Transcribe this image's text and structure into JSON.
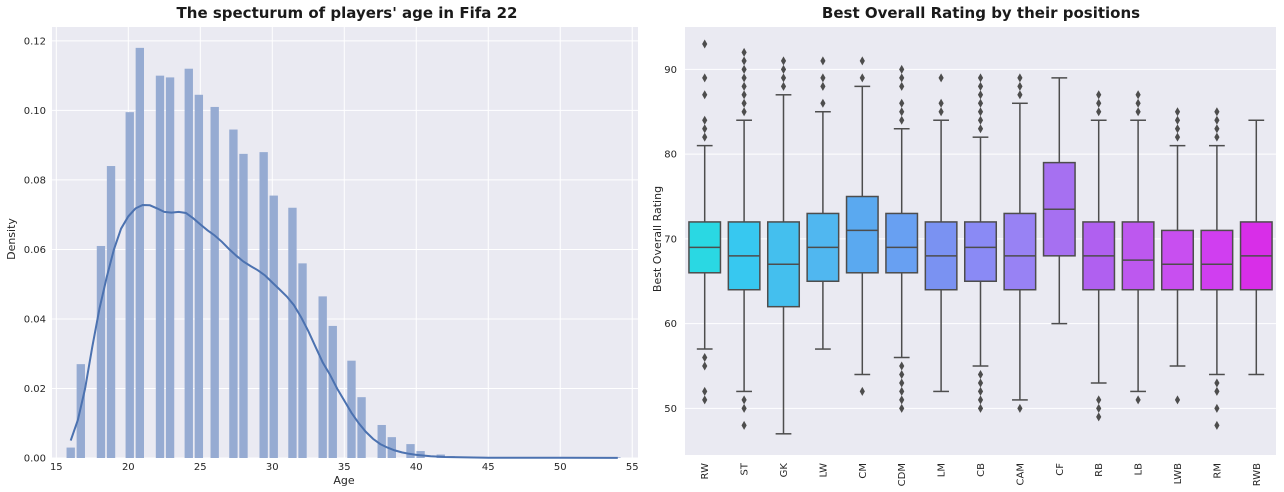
{
  "chart_data": [
    {
      "type": "histogram",
      "title": "The specturum of players' age in Fifa 22",
      "xlabel": "Age",
      "ylabel": "Density",
      "xlim": [
        14.7,
        55.4
      ],
      "ylim": [
        0,
        0.124
      ],
      "xticks": [
        "15",
        "20",
        "25",
        "30",
        "35",
        "40",
        "45",
        "50",
        "55"
      ],
      "xtick_values": [
        15,
        20,
        25,
        30,
        35,
        40,
        45,
        50,
        55
      ],
      "yticks": [
        "0.00",
        "0.02",
        "0.04",
        "0.06",
        "0.08",
        "0.10",
        "0.12"
      ],
      "ytick_values": [
        0,
        0.02,
        0.04,
        0.06,
        0.08,
        0.1,
        0.12
      ],
      "grid": true,
      "bars": [
        {
          "x": 16.0,
          "density": 0.003
        },
        {
          "x": 16.7,
          "density": 0.027
        },
        {
          "x": 18.1,
          "density": 0.061
        },
        {
          "x": 18.8,
          "density": 0.084
        },
        {
          "x": 20.1,
          "density": 0.0995
        },
        {
          "x": 20.8,
          "density": 0.118
        },
        {
          "x": 22.2,
          "density": 0.11
        },
        {
          "x": 22.9,
          "density": 0.1095
        },
        {
          "x": 24.2,
          "density": 0.112
        },
        {
          "x": 24.9,
          "density": 0.1045
        },
        {
          "x": 26.0,
          "density": 0.101
        },
        {
          "x": 27.3,
          "density": 0.0945
        },
        {
          "x": 28.0,
          "density": 0.0875
        },
        {
          "x": 29.4,
          "density": 0.088
        },
        {
          "x": 30.1,
          "density": 0.0755
        },
        {
          "x": 31.4,
          "density": 0.072
        },
        {
          "x": 32.1,
          "density": 0.056
        },
        {
          "x": 33.5,
          "density": 0.0465
        },
        {
          "x": 34.2,
          "density": 0.038
        },
        {
          "x": 35.5,
          "density": 0.028
        },
        {
          "x": 36.2,
          "density": 0.0175
        },
        {
          "x": 37.6,
          "density": 0.0095
        },
        {
          "x": 38.3,
          "density": 0.006
        },
        {
          "x": 39.6,
          "density": 0.004
        },
        {
          "x": 40.3,
          "density": 0.002
        },
        {
          "x": 41.7,
          "density": 0.001
        },
        {
          "x": 42.4,
          "density": 0.0005
        },
        {
          "x": 44.5,
          "density": 0.0003
        },
        {
          "x": 53.9,
          "density": 0.0002
        }
      ],
      "bar_width": 0.58,
      "bar_color": "#96abd2",
      "kde": {
        "color": "#4c72b0",
        "points": [
          [
            16,
            0.005
          ],
          [
            16.5,
            0.011
          ],
          [
            17,
            0.02
          ],
          [
            17.5,
            0.032
          ],
          [
            18,
            0.043
          ],
          [
            18.5,
            0.052
          ],
          [
            19,
            0.06
          ],
          [
            19.5,
            0.066
          ],
          [
            20,
            0.0695
          ],
          [
            20.5,
            0.0718
          ],
          [
            21,
            0.0728
          ],
          [
            21.5,
            0.0727
          ],
          [
            22,
            0.0718
          ],
          [
            22.5,
            0.0708
          ],
          [
            23,
            0.0706
          ],
          [
            23.5,
            0.0708
          ],
          [
            24,
            0.0705
          ],
          [
            24.5,
            0.069
          ],
          [
            25,
            0.0672
          ],
          [
            25.5,
            0.0655
          ],
          [
            26,
            0.064
          ],
          [
            26.5,
            0.0622
          ],
          [
            27,
            0.0601
          ],
          [
            27.5,
            0.0582
          ],
          [
            28,
            0.0565
          ],
          [
            28.5,
            0.0552
          ],
          [
            29,
            0.054
          ],
          [
            29.5,
            0.0525
          ],
          [
            30,
            0.0505
          ],
          [
            30.5,
            0.0485
          ],
          [
            31,
            0.0465
          ],
          [
            31.5,
            0.044
          ],
          [
            32,
            0.0405
          ],
          [
            32.5,
            0.0365
          ],
          [
            33,
            0.032
          ],
          [
            33.5,
            0.0275
          ],
          [
            34,
            0.024
          ],
          [
            34.5,
            0.02
          ],
          [
            35,
            0.0165
          ],
          [
            35.5,
            0.013
          ],
          [
            36,
            0.01
          ],
          [
            36.5,
            0.0075
          ],
          [
            37,
            0.0055
          ],
          [
            37.5,
            0.004
          ],
          [
            38,
            0.003
          ],
          [
            38.5,
            0.0022
          ],
          [
            39,
            0.0016
          ],
          [
            39.5,
            0.0012
          ],
          [
            40,
            0.0009
          ],
          [
            41,
            0.0005
          ],
          [
            42,
            0.0003
          ],
          [
            43,
            0.0002
          ],
          [
            45,
            0.0001
          ],
          [
            50,
            5e-05
          ],
          [
            54,
            3e-05
          ]
        ]
      }
    },
    {
      "type": "boxplot",
      "title": "Best Overall Rating by their positions",
      "xlabel": "",
      "ylabel": "Best Overall Rating",
      "ylim": [
        44.5,
        95
      ],
      "yticks": [
        "50",
        "60",
        "70",
        "80",
        "90"
      ],
      "ytick_values": [
        50,
        60,
        70,
        80,
        90
      ],
      "grid": true,
      "categories": [
        "RW",
        "ST",
        "GK",
        "LW",
        "CM",
        "CDM",
        "LM",
        "CB",
        "CAM",
        "CF",
        "RB",
        "LB",
        "LWB",
        "RM",
        "RWB"
      ],
      "boxes": [
        {
          "category": "RW",
          "color": "#2ad8e3",
          "q1": 66,
          "median": 69,
          "q3": 72,
          "whisker_low": 57,
          "whisker_high": 81,
          "fliers": [
            51,
            52,
            55,
            56,
            82,
            83,
            84,
            87,
            89,
            93
          ]
        },
        {
          "category": "ST",
          "color": "#37c8f0",
          "q1": 64,
          "median": 68,
          "q3": 72,
          "whisker_low": 52,
          "whisker_high": 84,
          "fliers": [
            48,
            50,
            51,
            85,
            86,
            87,
            88,
            89,
            90,
            91,
            92
          ]
        },
        {
          "category": "GK",
          "color": "#44bfee",
          "q1": 62,
          "median": 67,
          "q3": 72,
          "whisker_low": 47,
          "whisker_high": 87,
          "fliers": [
            88,
            89,
            90,
            91
          ]
        },
        {
          "category": "LW",
          "color": "#50b7f0",
          "q1": 65,
          "median": 69,
          "q3": 73,
          "whisker_low": 57,
          "whisker_high": 85,
          "fliers": [
            86,
            88,
            89,
            91
          ]
        },
        {
          "category": "CM",
          "color": "#5aa9f0",
          "q1": 66,
          "median": 71,
          "q3": 75,
          "whisker_low": 54,
          "whisker_high": 88,
          "fliers": [
            52,
            89,
            91
          ]
        },
        {
          "category": "CDM",
          "color": "#68a0f2",
          "q1": 66,
          "median": 69,
          "q3": 73,
          "whisker_low": 56,
          "whisker_high": 83,
          "fliers": [
            50,
            51,
            52,
            53,
            54,
            55,
            84,
            85,
            86,
            88,
            89,
            90
          ]
        },
        {
          "category": "LM",
          "color": "#7a92f2",
          "q1": 64,
          "median": 68,
          "q3": 72,
          "whisker_low": 52,
          "whisker_high": 84,
          "fliers": [
            85,
            86,
            89
          ]
        },
        {
          "category": "CB",
          "color": "#8a8af5",
          "q1": 65,
          "median": 69,
          "q3": 72,
          "whisker_low": 55,
          "whisker_high": 82,
          "fliers": [
            50,
            51,
            52,
            53,
            54,
            83,
            84,
            85,
            86,
            87,
            88,
            89
          ]
        },
        {
          "category": "CAM",
          "color": "#9882f4",
          "q1": 64,
          "median": 68,
          "q3": 73,
          "whisker_low": 51,
          "whisker_high": 86,
          "fliers": [
            50,
            87,
            88,
            89
          ]
        },
        {
          "category": "CF",
          "color": "#a670f1",
          "q1": 68,
          "median": 73.5,
          "q3": 79,
          "whisker_low": 60,
          "whisker_high": 89,
          "fliers": []
        },
        {
          "category": "RB",
          "color": "#b060f0",
          "q1": 64,
          "median": 68,
          "q3": 72,
          "whisker_low": 53,
          "whisker_high": 84,
          "fliers": [
            49,
            50,
            51,
            85,
            86,
            87
          ]
        },
        {
          "category": "LB",
          "color": "#bd58ef",
          "q1": 64,
          "median": 67.5,
          "q3": 72,
          "whisker_low": 52,
          "whisker_high": 84,
          "fliers": [
            51,
            85,
            86,
            87
          ]
        },
        {
          "category": "LWB",
          "color": "#c84ff0",
          "q1": 64,
          "median": 67,
          "q3": 71,
          "whisker_low": 55,
          "whisker_high": 81,
          "fliers": [
            51,
            82,
            83,
            84,
            85
          ]
        },
        {
          "category": "RM",
          "color": "#d03ef0",
          "q1": 64,
          "median": 67,
          "q3": 71,
          "whisker_low": 54,
          "whisker_high": 81,
          "fliers": [
            48,
            50,
            52,
            53,
            82,
            83,
            84,
            85
          ]
        },
        {
          "category": "RWB",
          "color": "#d82ee8",
          "q1": 64,
          "median": 68,
          "q3": 72,
          "whisker_low": 54,
          "whisker_high": 84,
          "fliers": []
        }
      ]
    }
  ],
  "style": {
    "axes_bg": "#eaeaf2",
    "grid_color": "#ffffff",
    "box_line_color": "#4d4d4d"
  }
}
